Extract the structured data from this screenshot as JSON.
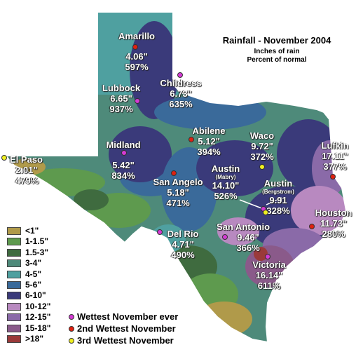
{
  "title": "Rainfall - November 2004",
  "subtitle_lines": [
    "Inches of rain",
    "Percent of normal"
  ],
  "colors": {
    "wettest": "#d43ad4",
    "second": "#e02010",
    "third": "#f0f020"
  },
  "stations": [
    {
      "id": "amarillo",
      "city": "Amarillo",
      "inches": "4.06\"",
      "percent": "597%",
      "rank": "second"
    },
    {
      "id": "childress",
      "city": "Childress",
      "inches": "6.73\"",
      "percent": "635%",
      "rank": "wettest"
    },
    {
      "id": "lubbock",
      "city": "Lubbock",
      "inches": "6.65\"",
      "percent": "937%",
      "rank": "wettest"
    },
    {
      "id": "abilene",
      "city": "Abilene",
      "inches": "5.12\"",
      "percent": "394%",
      "rank": "second"
    },
    {
      "id": "waco",
      "city": "Waco",
      "inches": "9.72\"",
      "percent": "372%",
      "rank": "third"
    },
    {
      "id": "midland",
      "city": "Midland",
      "inches": "5.42\"",
      "percent": "834%",
      "rank": "wettest"
    },
    {
      "id": "lufkin",
      "city": "Lufkin",
      "inches": "17.11\"",
      "percent": "377%",
      "rank": "second"
    },
    {
      "id": "elpaso",
      "city": "El Paso",
      "inches": "2.01\"",
      "percent": "479%",
      "rank": "third"
    },
    {
      "id": "sanangelo",
      "city": "San Angelo",
      "inches": "5.18\"",
      "percent": "471%",
      "rank": "second"
    },
    {
      "id": "austin_mabry",
      "city": "Austin",
      "sub": "(Mabry)",
      "inches": "14.10\"",
      "percent": "526%",
      "rank": "wettest"
    },
    {
      "id": "austin_berg",
      "city": "Austin",
      "sub": "(Bergstrom)",
      "inches": "9.91",
      "percent": "328%",
      "rank": "third"
    },
    {
      "id": "houston",
      "city": "Houston",
      "inches": "11.73\"",
      "percent": "280%",
      "rank": "second"
    },
    {
      "id": "delrio",
      "city": "Del Rio",
      "inches": "4.71\"",
      "percent": "490%",
      "rank": "wettest"
    },
    {
      "id": "sanantonio",
      "city": "San Antonio",
      "inches": "9.46\"",
      "percent": "366%",
      "rank": "wettest"
    },
    {
      "id": "victoria",
      "city": "Victoria",
      "inches": "16.14\"",
      "percent": "611%",
      "rank": "wettest"
    }
  ],
  "legend": [
    {
      "label": "<1\"",
      "color": "#b09a4a"
    },
    {
      "label": "1-1.5\"",
      "color": "#5e9a4e"
    },
    {
      "label": "1.5-3\"",
      "color": "#3f6b3f"
    },
    {
      "label": "3-4\"",
      "color": "#4e8a7a"
    },
    {
      "label": "4-5\"",
      "color": "#4fa0a0"
    },
    {
      "label": "5-6\"",
      "color": "#3a6a9a"
    },
    {
      "label": "6-10\"",
      "color": "#3a3a7a"
    },
    {
      "label": "10-12\"",
      "color": "#b889c0"
    },
    {
      "label": "12-15\"",
      "color": "#8a6aa8"
    },
    {
      "label": "15-18\"",
      "color": "#8a5a8a"
    },
    {
      "label": ">18\"",
      "color": "#9a3a3a"
    }
  ],
  "key": [
    {
      "label": "Wettest November ever",
      "color": "#d43ad4"
    },
    {
      "label": "2nd Wettest November",
      "color": "#e02010"
    },
    {
      "label": "3rd Wettest November",
      "color": "#f0f020"
    }
  ]
}
